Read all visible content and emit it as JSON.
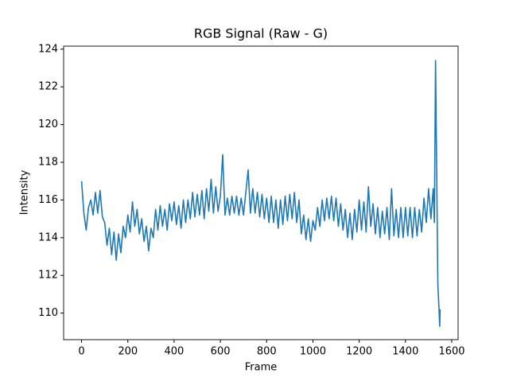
{
  "chart_data": {
    "type": "line",
    "title": "RGB Signal (Raw - G)",
    "x_label": "Frame",
    "y_label": "Intensity",
    "x": [
      0,
      10,
      20,
      30,
      40,
      50,
      60,
      70,
      80,
      90,
      100,
      110,
      120,
      130,
      140,
      150,
      160,
      170,
      180,
      190,
      200,
      210,
      220,
      230,
      240,
      250,
      260,
      270,
      280,
      290,
      300,
      310,
      320,
      330,
      340,
      350,
      360,
      370,
      380,
      390,
      400,
      410,
      420,
      430,
      440,
      450,
      460,
      470,
      480,
      490,
      500,
      510,
      520,
      530,
      540,
      550,
      560,
      570,
      580,
      590,
      600,
      610,
      620,
      630,
      640,
      650,
      660,
      670,
      680,
      690,
      700,
      710,
      720,
      730,
      740,
      750,
      760,
      770,
      780,
      790,
      800,
      810,
      820,
      830,
      840,
      850,
      860,
      870,
      880,
      890,
      900,
      910,
      920,
      930,
      940,
      950,
      960,
      970,
      980,
      990,
      1000,
      1010,
      1020,
      1030,
      1040,
      1050,
      1060,
      1070,
      1080,
      1090,
      1100,
      1110,
      1120,
      1130,
      1140,
      1150,
      1160,
      1170,
      1180,
      1190,
      1200,
      1210,
      1220,
      1230,
      1240,
      1250,
      1260,
      1270,
      1280,
      1290,
      1300,
      1310,
      1320,
      1330,
      1340,
      1350,
      1360,
      1370,
      1380,
      1390,
      1400,
      1410,
      1420,
      1430,
      1440,
      1450,
      1460,
      1470,
      1480,
      1490,
      1500,
      1510,
      1520,
      1525,
      1530,
      1535,
      1540,
      1545,
      1548,
      1550
    ],
    "series": [
      {
        "name": "G",
        "color": "#1f77b4",
        "values": [
          117.0,
          115.3,
          114.4,
          115.6,
          116.0,
          115.2,
          116.4,
          115.3,
          116.5,
          115.1,
          114.8,
          113.6,
          114.5,
          113.1,
          114.3,
          112.8,
          114.2,
          113.2,
          114.6,
          114.0,
          115.2,
          114.3,
          115.9,
          114.6,
          115.5,
          114.2,
          115.0,
          113.8,
          114.6,
          113.3,
          114.5,
          114.0,
          115.5,
          114.4,
          115.7,
          114.6,
          115.5,
          114.4,
          115.8,
          114.9,
          115.9,
          114.7,
          115.7,
          114.5,
          116.0,
          114.8,
          116.0,
          115.0,
          116.4,
          115.1,
          116.3,
          115.2,
          116.5,
          115.0,
          116.6,
          115.4,
          117.1,
          115.3,
          116.7,
          115.4,
          116.2,
          118.4,
          115.2,
          116.1,
          115.2,
          116.2,
          115.3,
          116.2,
          115.2,
          116.1,
          115.2,
          116.4,
          117.6,
          115.3,
          116.6,
          115.3,
          116.4,
          115.1,
          116.3,
          115.0,
          116.1,
          114.8,
          116.2,
          114.8,
          116.0,
          114.5,
          116.0,
          114.7,
          116.2,
          114.9,
          116.3,
          115.0,
          116.4,
          114.8,
          116.0,
          114.2,
          115.2,
          113.9,
          115.0,
          113.8,
          114.9,
          114.4,
          115.6,
          114.6,
          116.0,
          114.9,
          116.1,
          115.0,
          116.2,
          114.9,
          116.1,
          114.6,
          115.8,
          114.4,
          115.5,
          114.0,
          115.3,
          113.9,
          115.5,
          114.3,
          116.0,
          114.4,
          115.9,
          114.3,
          116.7,
          114.6,
          115.8,
          114.2,
          115.6,
          114.0,
          115.4,
          114.2,
          115.6,
          113.9,
          116.6,
          114.1,
          115.5,
          114.0,
          115.6,
          114.0,
          115.6,
          114.1,
          115.6,
          114.0,
          115.6,
          114.1,
          115.5,
          114.3,
          116.1,
          114.8,
          116.6,
          115.0,
          116.6,
          114.8,
          123.4,
          117.5,
          111.5,
          110.2,
          109.3,
          110.2
        ]
      }
    ],
    "xlim": [
      -77.5,
      1627.5
    ],
    "ylim": [
      108.59,
      124.16
    ],
    "xticks": [
      0,
      200,
      400,
      600,
      800,
      1000,
      1200,
      1400,
      1600
    ],
    "yticks": [
      110,
      112,
      114,
      116,
      118,
      120,
      122,
      124
    ],
    "grid": false
  }
}
